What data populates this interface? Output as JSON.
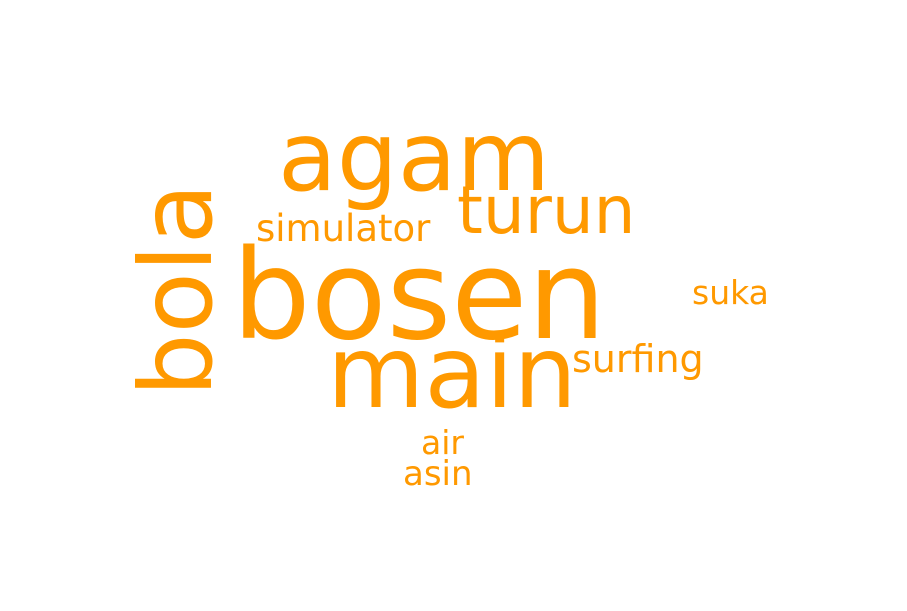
{
  "wordcloud": {
    "color": "#ff9900",
    "words": [
      {
        "text": "bosen"
      },
      {
        "text": "agam"
      },
      {
        "text": "main"
      },
      {
        "text": "bola"
      },
      {
        "text": "turun"
      },
      {
        "text": "simulator"
      },
      {
        "text": "suka"
      },
      {
        "text": "surfing"
      },
      {
        "text": "air"
      },
      {
        "text": "asin"
      }
    ]
  }
}
